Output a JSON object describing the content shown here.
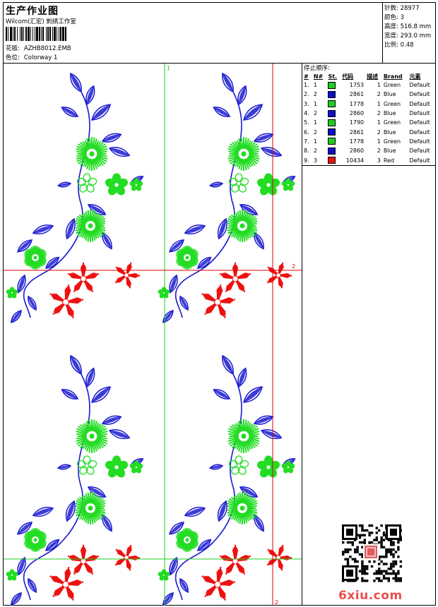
{
  "header": {
    "title": "生产作业图",
    "company": "Wilcom(汇宏) 刺绣工作室",
    "design_label": "花版:",
    "design_value": "AZHB8012.EMB",
    "colorway_label": "色位:",
    "colorway_value": "Colorway 1"
  },
  "stats": [
    {
      "label": "针数:",
      "value": "28977"
    },
    {
      "label": "颜色:",
      "value": "3"
    },
    {
      "label": "高度:",
      "value": "516.8 mm"
    },
    {
      "label": "宽度:",
      "value": "293.0 mm"
    },
    {
      "label": "比例:",
      "value": "0.48"
    }
  ],
  "stop_sequence": {
    "title": "停止顺序:",
    "headers": [
      "#",
      "N#",
      "St.",
      "代码",
      "描述",
      "Brand",
      "元素"
    ],
    "rows": [
      {
        "num": "1.",
        "n": "1",
        "color": "#22cc22",
        "stitches": "1753",
        "code": "1",
        "desc": "Green",
        "brand": "Default"
      },
      {
        "num": "2.",
        "n": "2",
        "color": "#1010cc",
        "stitches": "2861",
        "code": "2",
        "desc": "Blue",
        "brand": "Default"
      },
      {
        "num": "3.",
        "n": "1",
        "color": "#22cc22",
        "stitches": "1778",
        "code": "1",
        "desc": "Green",
        "brand": "Default"
      },
      {
        "num": "4.",
        "n": "2",
        "color": "#1010cc",
        "stitches": "2860",
        "code": "2",
        "desc": "Blue",
        "brand": "Default"
      },
      {
        "num": "5.",
        "n": "1",
        "color": "#22cc22",
        "stitches": "1790",
        "code": "1",
        "desc": "Green",
        "brand": "Default"
      },
      {
        "num": "6.",
        "n": "2",
        "color": "#1010cc",
        "stitches": "2861",
        "code": "2",
        "desc": "Blue",
        "brand": "Default"
      },
      {
        "num": "7.",
        "n": "1",
        "color": "#22cc22",
        "stitches": "1778",
        "code": "1",
        "desc": "Green",
        "brand": "Default"
      },
      {
        "num": "8.",
        "n": "2",
        "color": "#1010cc",
        "stitches": "2860",
        "code": "2",
        "desc": "Blue",
        "brand": "Default"
      },
      {
        "num": "9.",
        "n": "3",
        "color": "#ee1111",
        "stitches": "10434",
        "code": "3",
        "desc": "Red",
        "brand": "Default"
      }
    ]
  },
  "guides": {
    "label_one": "1",
    "label_two": "2"
  },
  "palette": {
    "green": "#22dd22",
    "blue": "#1a1ad0",
    "red": "#ee1111",
    "guide_green": "#22cc22",
    "guide_red": "#dd0000"
  },
  "watermark": "6xiu.com"
}
